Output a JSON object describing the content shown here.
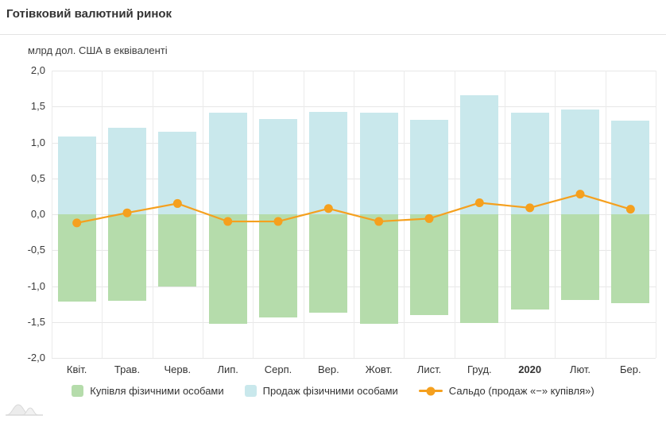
{
  "header": {
    "title": "Готівковий валютний ринок"
  },
  "chart": {
    "unit_label": "млрд дол. США в еквіваленті"
  },
  "chart_data": {
    "type": "combo",
    "title": "Готівковий валютний ринок",
    "unit": "млрд дол. США в еквіваленті",
    "categories": [
      "Квіт.",
      "Трав.",
      "Черв.",
      "Лип.",
      "Серп.",
      "Вер.",
      "Жовт.",
      "Лист.",
      "Груд.",
      "2020",
      "Лют.",
      "Бер."
    ],
    "emphasized_category": "2020",
    "ylim": [
      -2,
      2
    ],
    "ytick_step": 0.5,
    "ytick_labels": [
      "2,0",
      "1,5",
      "1,0",
      "0,5",
      "0,0",
      "-0,5",
      "-1,0",
      "-1,5",
      "-2,0"
    ],
    "grid": true,
    "legend_position": "bottom",
    "series": [
      {
        "name": "Купівля фізичними особами",
        "type": "bar",
        "color": "#b5dcab",
        "values": [
          -1.22,
          -1.2,
          -1.0,
          -1.52,
          -1.44,
          -1.37,
          -1.53,
          -1.4,
          -1.51,
          -1.33,
          -1.19,
          -1.24
        ]
      },
      {
        "name": "Продаж фізичними особами",
        "type": "bar",
        "color": "#c9e8ec",
        "values": [
          1.08,
          1.2,
          1.15,
          1.41,
          1.33,
          1.43,
          1.41,
          1.31,
          1.66,
          1.41,
          1.46,
          1.3
        ]
      },
      {
        "name": "Сальдо (продаж «−» купівля»)",
        "type": "line",
        "color": "#f5a01e",
        "values": [
          -0.12,
          0.02,
          0.15,
          -0.1,
          -0.1,
          0.08,
          -0.1,
          -0.06,
          0.16,
          0.09,
          0.28,
          0.07
        ]
      }
    ]
  },
  "icons": {
    "watermark": "chart-hills-logo"
  }
}
